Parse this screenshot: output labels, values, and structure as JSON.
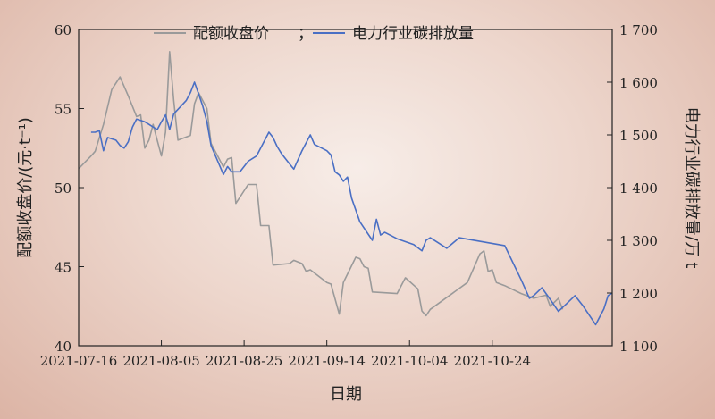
{
  "chart_data": {
    "type": "line",
    "legend": {
      "placement": "top-center",
      "separator": "；"
    },
    "series": [
      {
        "name": "配额收盘价",
        "axis": "left",
        "color": "#9a9a9a",
        "points": [
          [
            "2021-07-16",
            51.2
          ],
          [
            "2021-07-19",
            52.0
          ],
          [
            "2021-07-20",
            52.3
          ],
          [
            "2021-07-22",
            54.0
          ],
          [
            "2021-07-24",
            56.2
          ],
          [
            "2021-07-26",
            57.0
          ],
          [
            "2021-07-28",
            55.8
          ],
          [
            "2021-07-30",
            54.5
          ],
          [
            "2021-07-31",
            54.6
          ],
          [
            "2021-08-01",
            52.5
          ],
          [
            "2021-08-02",
            53.0
          ],
          [
            "2021-08-03",
            54.0
          ],
          [
            "2021-08-04",
            53.0
          ],
          [
            "2021-08-05",
            52.0
          ],
          [
            "2021-08-06",
            53.5
          ],
          [
            "2021-08-07",
            58.6
          ],
          [
            "2021-08-08",
            55.5
          ],
          [
            "2021-08-09",
            53.0
          ],
          [
            "2021-08-12",
            53.3
          ],
          [
            "2021-08-13",
            55.3
          ],
          [
            "2021-08-14",
            56.0
          ],
          [
            "2021-08-16",
            55.0
          ],
          [
            "2021-08-17",
            52.8
          ],
          [
            "2021-08-20",
            51.3
          ],
          [
            "2021-08-21",
            51.8
          ],
          [
            "2021-08-22",
            51.9
          ],
          [
            "2021-08-23",
            49.0
          ],
          [
            "2021-08-25",
            49.8
          ],
          [
            "2021-08-26",
            50.2
          ],
          [
            "2021-08-28",
            50.2
          ],
          [
            "2021-08-29",
            47.6
          ],
          [
            "2021-08-31",
            47.6
          ],
          [
            "2021-09-01",
            45.1
          ],
          [
            "2021-09-05",
            45.2
          ],
          [
            "2021-09-06",
            45.4
          ],
          [
            "2021-09-08",
            45.2
          ],
          [
            "2021-09-09",
            44.7
          ],
          [
            "2021-09-10",
            44.8
          ],
          [
            "2021-09-14",
            44.0
          ],
          [
            "2021-09-15",
            43.9
          ],
          [
            "2021-09-17",
            42.0
          ],
          [
            "2021-09-18",
            44.0
          ],
          [
            "2021-09-21",
            45.6
          ],
          [
            "2021-09-22",
            45.5
          ],
          [
            "2021-09-23",
            45.0
          ],
          [
            "2021-09-24",
            44.9
          ],
          [
            "2021-09-25",
            43.4
          ],
          [
            "2021-10-01",
            43.3
          ],
          [
            "2021-10-03",
            44.3
          ],
          [
            "2021-10-06",
            43.6
          ],
          [
            "2021-10-07",
            42.2
          ],
          [
            "2021-10-08",
            41.9
          ],
          [
            "2021-10-09",
            42.3
          ],
          [
            "2021-10-18",
            44.0
          ],
          [
            "2021-10-21",
            45.8
          ],
          [
            "2021-10-22",
            46.0
          ],
          [
            "2021-10-23",
            44.7
          ],
          [
            "2021-10-24",
            44.8
          ],
          [
            "2021-10-25",
            44.0
          ],
          [
            "2021-10-27",
            43.8
          ],
          [
            "2021-10-31",
            43.3
          ],
          [
            "2021-11-02",
            43.1
          ],
          [
            "2021-11-03",
            43.0
          ],
          [
            "2021-11-06",
            43.2
          ],
          [
            "2021-11-07",
            42.5
          ],
          [
            "2021-11-09",
            43.0
          ],
          [
            "2021-11-10",
            42.3
          ]
        ]
      },
      {
        "name": "电力行业碳排放量",
        "axis": "right",
        "color": "#4a6fc4",
        "points": [
          [
            "2021-07-19",
            1505
          ],
          [
            "2021-07-20",
            1505
          ],
          [
            "2021-07-21",
            1508
          ],
          [
            "2021-07-22",
            1470
          ],
          [
            "2021-07-23",
            1495
          ],
          [
            "2021-07-25",
            1490
          ],
          [
            "2021-07-26",
            1480
          ],
          [
            "2021-07-27",
            1475
          ],
          [
            "2021-07-28",
            1487
          ],
          [
            "2021-07-29",
            1515
          ],
          [
            "2021-07-30",
            1530
          ],
          [
            "2021-08-01",
            1525
          ],
          [
            "2021-08-02",
            1520
          ],
          [
            "2021-08-03",
            1515
          ],
          [
            "2021-08-04",
            1510
          ],
          [
            "2021-08-05",
            1525
          ],
          [
            "2021-08-06",
            1538
          ],
          [
            "2021-08-07",
            1510
          ],
          [
            "2021-08-08",
            1540
          ],
          [
            "2021-08-11",
            1565
          ],
          [
            "2021-08-12",
            1580
          ],
          [
            "2021-08-13",
            1600
          ],
          [
            "2021-08-14",
            1578
          ],
          [
            "2021-08-15",
            1555
          ],
          [
            "2021-08-16",
            1525
          ],
          [
            "2021-08-17",
            1480
          ],
          [
            "2021-08-20",
            1425
          ],
          [
            "2021-08-21",
            1440
          ],
          [
            "2021-08-22",
            1430
          ],
          [
            "2021-08-24",
            1430
          ],
          [
            "2021-08-26",
            1450
          ],
          [
            "2021-08-28",
            1460
          ],
          [
            "2021-08-31",
            1505
          ],
          [
            "2021-09-01",
            1495
          ],
          [
            "2021-09-02",
            1478
          ],
          [
            "2021-09-03",
            1465
          ],
          [
            "2021-09-05",
            1445
          ],
          [
            "2021-09-06",
            1435
          ],
          [
            "2021-09-08",
            1470
          ],
          [
            "2021-09-10",
            1500
          ],
          [
            "2021-09-11",
            1482
          ],
          [
            "2021-09-14",
            1470
          ],
          [
            "2021-09-15",
            1462
          ],
          [
            "2021-09-16",
            1430
          ],
          [
            "2021-09-17",
            1424
          ],
          [
            "2021-09-18",
            1412
          ],
          [
            "2021-09-19",
            1420
          ],
          [
            "2021-09-20",
            1380
          ],
          [
            "2021-09-22",
            1335
          ],
          [
            "2021-09-25",
            1300
          ],
          [
            "2021-09-26",
            1340
          ],
          [
            "2021-09-27",
            1310
          ],
          [
            "2021-09-28",
            1315
          ],
          [
            "2021-10-01",
            1303
          ],
          [
            "2021-10-05",
            1292
          ],
          [
            "2021-10-07",
            1280
          ],
          [
            "2021-10-08",
            1300
          ],
          [
            "2021-10-09",
            1305
          ],
          [
            "2021-10-11",
            1295
          ],
          [
            "2021-10-13",
            1285
          ],
          [
            "2021-10-16",
            1305
          ],
          [
            "2021-10-27",
            1290
          ],
          [
            "2021-10-31",
            1225
          ],
          [
            "2021-11-02",
            1190
          ],
          [
            "2021-11-03",
            1195
          ],
          [
            "2021-11-05",
            1210
          ],
          [
            "2021-11-07",
            1188
          ],
          [
            "2021-11-09",
            1165
          ],
          [
            "2021-11-11",
            1180
          ],
          [
            "2021-11-13",
            1195
          ],
          [
            "2021-11-15",
            1175
          ],
          [
            "2021-11-18",
            1140
          ],
          [
            "2021-11-20",
            1170
          ],
          [
            "2021-11-21",
            1195
          ],
          [
            "2021-11-22",
            1200
          ]
        ]
      }
    ],
    "x_axis": {
      "title": "日期",
      "ticks": [
        "2021-07-16",
        "2021-08-05",
        "2021-08-25",
        "2021-09-14",
        "2021-10-04",
        "2021-10-24"
      ],
      "range": [
        "2021-07-16",
        "2021-11-22"
      ]
    },
    "y_left": {
      "title": "配额收盘价/(元·t⁻¹)",
      "range": [
        40,
        60
      ],
      "ticks": [
        "40",
        "45",
        "50",
        "55",
        "60"
      ]
    },
    "y_right": {
      "title": "电力行业碳排放量/万 t",
      "range": [
        1100,
        1700
      ],
      "ticks": [
        "1 100",
        "1 200",
        "1 300",
        "1 400",
        "1 500",
        "1 600",
        "1 700"
      ]
    },
    "grid": false
  }
}
